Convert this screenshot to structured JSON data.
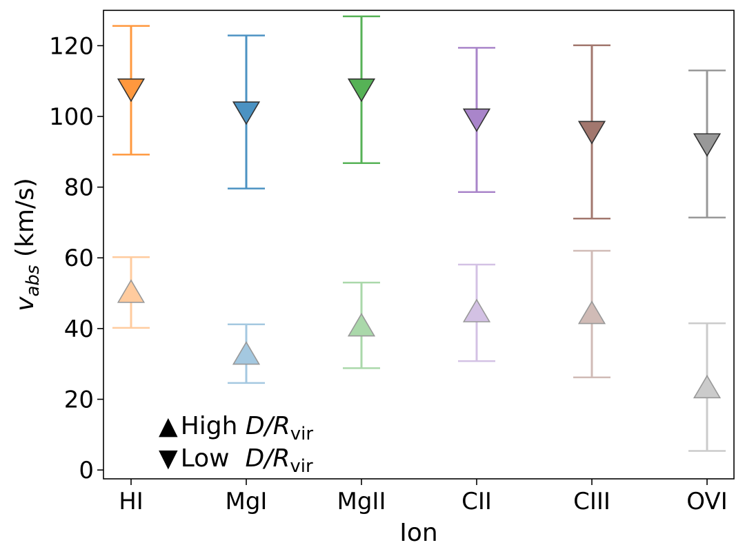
{
  "chart_data": {
    "type": "scatter",
    "title": "",
    "xlabel": "Ion",
    "ylabel_main": "v",
    "ylabel_sub": "abs",
    "ylabel_unit": " (km/s)",
    "categories": [
      "HI",
      "MgI",
      "MgII",
      "CII",
      "CIII",
      "OVI"
    ],
    "ylim": [
      -2.5,
      130
    ],
    "yticks": [
      0,
      20,
      40,
      60,
      80,
      100,
      120
    ],
    "colors": [
      "#ff7f0e",
      "#1f77b4",
      "#2ca02c",
      "#9467bd",
      "#8c564b",
      "#7f7f7f"
    ],
    "series": [
      {
        "name": "Low D/Rvir",
        "marker": "down-triangle",
        "alpha": 0.8,
        "values": [
          108,
          101.5,
          108,
          99.5,
          96,
          92.5
        ],
        "err_low": [
          89.2,
          79.6,
          86.8,
          78.6,
          71.1,
          71.4
        ],
        "err_high": [
          125.6,
          122.9,
          128.3,
          119.4,
          120.1,
          113
        ]
      },
      {
        "name": "High D/Rvir",
        "marker": "up-triangle",
        "alpha": 0.4,
        "values": [
          50,
          32.5,
          40.5,
          44.5,
          44,
          23
        ],
        "err_low": [
          40.2,
          24.6,
          28.8,
          30.8,
          26.2,
          5.4
        ],
        "err_high": [
          60.2,
          41.2,
          53,
          58.1,
          62,
          41.5
        ]
      }
    ],
    "legend": {
      "position": "bottom-left",
      "entries": [
        {
          "symbol": "▲",
          "prefix": "High ",
          "math": "D/R",
          "sub": "vir"
        },
        {
          "symbol": "▼",
          "prefix": "Low  ",
          "math": "D/R",
          "sub": "vir"
        }
      ]
    }
  }
}
